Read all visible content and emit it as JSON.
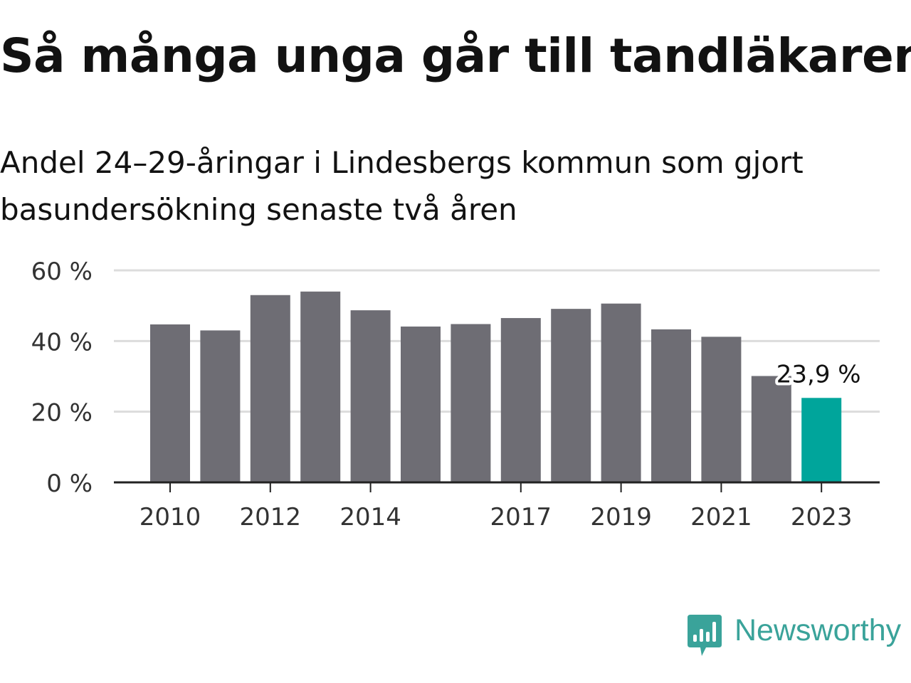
{
  "brand": {
    "name": "Newsworthy",
    "logo_icon": "bar-chart-speech-bubble-icon",
    "color": "#3aa39a"
  },
  "chart_data": {
    "type": "bar",
    "title": "Så många unga går till tandläkaren",
    "subtitle": "Andel 24–29-åringar i Lindesbergs kommun som gjort basundersökning senaste två åren",
    "categories": [
      2010,
      2011,
      2012,
      2013,
      2014,
      2015,
      2016,
      2017,
      2018,
      2019,
      2020,
      2021,
      2022,
      2023
    ],
    "x_tick_labels": [
      "2010",
      "2012",
      "2014",
      "2017",
      "2019",
      "2021",
      "2023"
    ],
    "values": [
      44.7,
      43.0,
      53.0,
      54.0,
      48.7,
      44.1,
      44.8,
      46.5,
      49.1,
      50.6,
      43.3,
      41.2,
      30.1,
      23.9
    ],
    "ylim": [
      0,
      60
    ],
    "y_ticks": [
      0,
      20,
      40,
      60
    ],
    "y_tick_labels": [
      "0 %",
      "20 %",
      "40 %",
      "60 %"
    ],
    "highlight_label": "23,9 %",
    "highlight_index": 13,
    "xlabel": "",
    "ylabel": "",
    "grid": true,
    "colors": {
      "bar": "#6e6d74",
      "highlight": "#00a59b",
      "grid": "#dcdcdc",
      "axis": "#222222",
      "tick_text": "#333333"
    }
  }
}
